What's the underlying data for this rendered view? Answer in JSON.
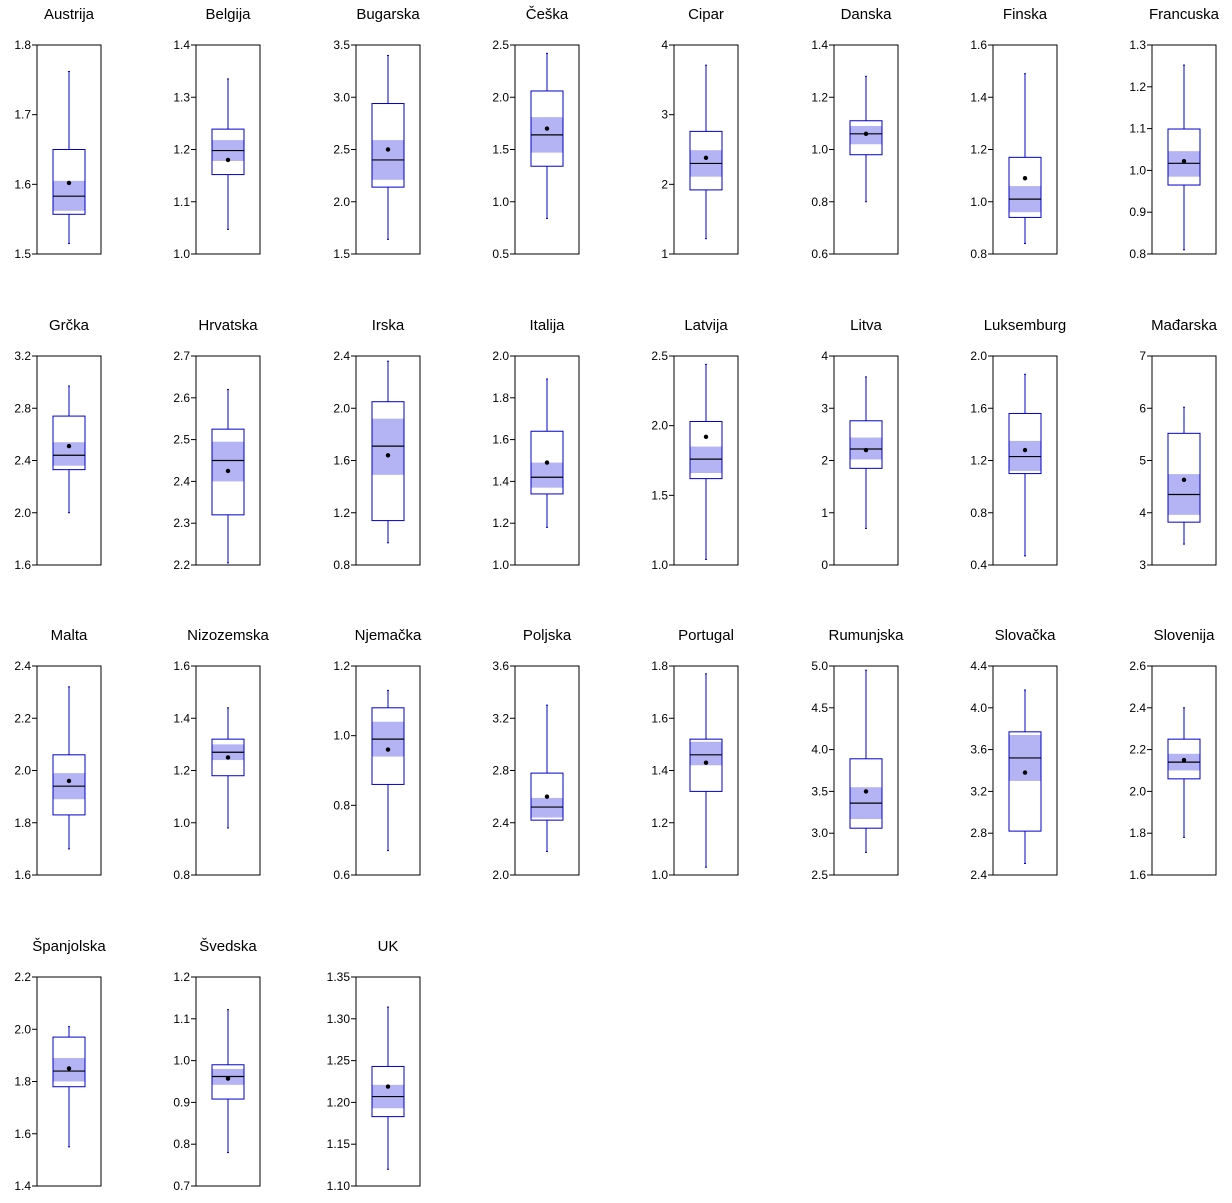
{
  "colors": {
    "box": "#0000cc",
    "notch": "#b4b4f4",
    "median": "#000000",
    "mean": "#000000",
    "frame": "#000000",
    "background": "#ffffff"
  },
  "chart_data": [
    {
      "type": "box",
      "title": "Austrija",
      "ylim": [
        1.5,
        1.8
      ],
      "ticks": [
        "1.5",
        "1.6",
        "1.7",
        "1.8"
      ],
      "box": {
        "whisker_low": 1.515,
        "q1": 1.557,
        "median": 1.583,
        "q3": 1.65,
        "whisker_high": 1.762,
        "mean": 1.602,
        "notch_low": 1.562,
        "notch_high": 1.605
      }
    },
    {
      "type": "box",
      "title": "Belgija",
      "ylim": [
        1.0,
        1.4
      ],
      "ticks": [
        "1.0",
        "1.1",
        "1.2",
        "1.3",
        "1.4"
      ],
      "box": {
        "whisker_low": 1.047,
        "q1": 1.152,
        "median": 1.198,
        "q3": 1.239,
        "whisker_high": 1.335,
        "mean": 1.18,
        "notch_low": 1.178,
        "notch_high": 1.218
      }
    },
    {
      "type": "box",
      "title": "Bugarska",
      "ylim": [
        1.5,
        3.5
      ],
      "ticks": [
        "1.5",
        "2.0",
        "2.5",
        "3.0",
        "3.5"
      ],
      "box": {
        "whisker_low": 1.64,
        "q1": 2.14,
        "median": 2.4,
        "q3": 2.94,
        "whisker_high": 3.4,
        "mean": 2.5,
        "notch_low": 2.21,
        "notch_high": 2.59
      }
    },
    {
      "type": "box",
      "title": "Češka",
      "ylim": [
        0.5,
        2.5
      ],
      "ticks": [
        "0.5",
        "1.0",
        "1.5",
        "2.0",
        "2.5"
      ],
      "box": {
        "whisker_low": 0.84,
        "q1": 1.34,
        "median": 1.64,
        "q3": 2.06,
        "whisker_high": 2.42,
        "mean": 1.7,
        "notch_low": 1.47,
        "notch_high": 1.81
      }
    },
    {
      "type": "box",
      "title": "Cipar",
      "ylim": [
        1,
        4
      ],
      "ticks": [
        "1",
        "2",
        "3",
        "4"
      ],
      "box": {
        "whisker_low": 1.22,
        "q1": 1.92,
        "median": 2.3,
        "q3": 2.76,
        "whisker_high": 3.71,
        "mean": 2.38,
        "notch_low": 2.11,
        "notch_high": 2.49
      }
    },
    {
      "type": "box",
      "title": "Danska",
      "ylim": [
        0.6,
        1.4
      ],
      "ticks": [
        "0.6",
        "0.8",
        "1.0",
        "1.2",
        "1.4"
      ],
      "box": {
        "whisker_low": 0.8,
        "q1": 0.98,
        "median": 1.06,
        "q3": 1.11,
        "whisker_high": 1.28,
        "mean": 1.06,
        "notch_low": 1.02,
        "notch_high": 1.09
      }
    },
    {
      "type": "box",
      "title": "Finska",
      "ylim": [
        0.8,
        1.6
      ],
      "ticks": [
        "0.8",
        "1.0",
        "1.2",
        "1.4",
        "1.6"
      ],
      "box": {
        "whisker_low": 0.84,
        "q1": 0.94,
        "median": 1.01,
        "q3": 1.17,
        "whisker_high": 1.49,
        "mean": 1.09,
        "notch_low": 0.96,
        "notch_high": 1.06
      }
    },
    {
      "type": "box",
      "title": "Francuska",
      "ylim": [
        0.8,
        1.3
      ],
      "ticks": [
        "0.8",
        "0.9",
        "1.0",
        "1.1",
        "1.2",
        "1.3"
      ],
      "box": {
        "whisker_low": 0.81,
        "q1": 0.965,
        "median": 1.017,
        "q3": 1.099,
        "whisker_high": 1.252,
        "mean": 1.022,
        "notch_low": 0.985,
        "notch_high": 1.046
      }
    },
    {
      "type": "box",
      "title": "Grčka",
      "ylim": [
        1.6,
        3.2
      ],
      "ticks": [
        "1.6",
        "2.0",
        "2.4",
        "2.8",
        "3.2"
      ],
      "box": {
        "whisker_low": 2.0,
        "q1": 2.33,
        "median": 2.44,
        "q3": 2.74,
        "whisker_high": 2.97,
        "mean": 2.51,
        "notch_low": 2.36,
        "notch_high": 2.54
      }
    },
    {
      "type": "box",
      "title": "Hrvatska",
      "ylim": [
        2.2,
        2.7
      ],
      "ticks": [
        "2.2",
        "2.3",
        "2.4",
        "2.5",
        "2.6",
        "2.7"
      ],
      "box": {
        "whisker_low": 2.205,
        "q1": 2.32,
        "median": 2.45,
        "q3": 2.525,
        "whisker_high": 2.62,
        "mean": 2.425,
        "notch_low": 2.4,
        "notch_high": 2.495
      }
    },
    {
      "type": "box",
      "title": "Irska",
      "ylim": [
        0.8,
        2.4
      ],
      "ticks": [
        "0.8",
        "1.2",
        "1.6",
        "2.0",
        "2.4"
      ],
      "box": {
        "whisker_low": 0.97,
        "q1": 1.14,
        "median": 1.71,
        "q3": 2.05,
        "whisker_high": 2.36,
        "mean": 1.64,
        "notch_low": 1.49,
        "notch_high": 1.92
      }
    },
    {
      "type": "box",
      "title": "Italija",
      "ylim": [
        1.0,
        2.0
      ],
      "ticks": [
        "1.0",
        "1.2",
        "1.4",
        "1.6",
        "1.8",
        "2.0"
      ],
      "box": {
        "whisker_low": 1.18,
        "q1": 1.34,
        "median": 1.42,
        "q3": 1.64,
        "whisker_high": 1.89,
        "mean": 1.49,
        "notch_low": 1.37,
        "notch_high": 1.49
      }
    },
    {
      "type": "box",
      "title": "Latvija",
      "ylim": [
        1.0,
        2.5
      ],
      "ticks": [
        "1.0",
        "1.5",
        "2.0",
        "2.5"
      ],
      "box": {
        "whisker_low": 1.04,
        "q1": 1.62,
        "median": 1.76,
        "q3": 2.03,
        "whisker_high": 2.44,
        "mean": 1.92,
        "notch_low": 1.66,
        "notch_high": 1.85
      }
    },
    {
      "type": "box",
      "title": "Litva",
      "ylim": [
        0,
        4
      ],
      "ticks": [
        "0",
        "1",
        "2",
        "3",
        "4"
      ],
      "box": {
        "whisker_low": 0.7,
        "q1": 1.85,
        "median": 2.22,
        "q3": 2.76,
        "whisker_high": 3.6,
        "mean": 2.2,
        "notch_low": 2.02,
        "notch_high": 2.44
      }
    },
    {
      "type": "box",
      "title": "Luksemburg",
      "ylim": [
        0.4,
        2.0
      ],
      "ticks": [
        "0.4",
        "0.8",
        "1.2",
        "1.6",
        "2.0"
      ],
      "box": {
        "whisker_low": 0.47,
        "q1": 1.1,
        "median": 1.23,
        "q3": 1.56,
        "whisker_high": 1.86,
        "mean": 1.28,
        "notch_low": 1.12,
        "notch_high": 1.35
      }
    },
    {
      "type": "box",
      "title": "Mađarska",
      "ylim": [
        3,
        7
      ],
      "ticks": [
        "3",
        "4",
        "5",
        "6",
        "7"
      ],
      "box": {
        "whisker_low": 3.4,
        "q1": 3.82,
        "median": 4.35,
        "q3": 5.52,
        "whisker_high": 6.02,
        "mean": 4.63,
        "notch_low": 3.96,
        "notch_high": 4.74
      }
    },
    {
      "type": "box",
      "title": "Malta",
      "ylim": [
        1.6,
        2.4
      ],
      "ticks": [
        "1.6",
        "1.8",
        "2.0",
        "2.2",
        "2.4"
      ],
      "box": {
        "whisker_low": 1.7,
        "q1": 1.83,
        "median": 1.94,
        "q3": 2.06,
        "whisker_high": 2.32,
        "mean": 1.96,
        "notch_low": 1.89,
        "notch_high": 1.99
      }
    },
    {
      "type": "box",
      "title": "Nizozemska",
      "ylim": [
        0.8,
        1.6
      ],
      "ticks": [
        "0.8",
        "1.0",
        "1.2",
        "1.4",
        "1.6"
      ],
      "box": {
        "whisker_low": 0.98,
        "q1": 1.18,
        "median": 1.27,
        "q3": 1.32,
        "whisker_high": 1.44,
        "mean": 1.25,
        "notch_low": 1.24,
        "notch_high": 1.3
      }
    },
    {
      "type": "box",
      "title": "Njemačka",
      "ylim": [
        0.6,
        1.2
      ],
      "ticks": [
        "0.6",
        "0.8",
        "1.0",
        "1.2"
      ],
      "box": {
        "whisker_low": 0.67,
        "q1": 0.86,
        "median": 0.99,
        "q3": 1.08,
        "whisker_high": 1.13,
        "mean": 0.96,
        "notch_low": 0.94,
        "notch_high": 1.04
      }
    },
    {
      "type": "box",
      "title": "Poljska",
      "ylim": [
        2.0,
        3.6
      ],
      "ticks": [
        "2.0",
        "2.4",
        "2.8",
        "3.2",
        "3.6"
      ],
      "box": {
        "whisker_low": 2.18,
        "q1": 2.42,
        "median": 2.52,
        "q3": 2.78,
        "whisker_high": 3.3,
        "mean": 2.6,
        "notch_low": 2.44,
        "notch_high": 2.59
      }
    },
    {
      "type": "box",
      "title": "Portugal",
      "ylim": [
        1.0,
        1.8
      ],
      "ticks": [
        "1.0",
        "1.2",
        "1.4",
        "1.6",
        "1.8"
      ],
      "box": {
        "whisker_low": 1.03,
        "q1": 1.32,
        "median": 1.46,
        "q3": 1.52,
        "whisker_high": 1.77,
        "mean": 1.43,
        "notch_low": 1.42,
        "notch_high": 1.51
      }
    },
    {
      "type": "box",
      "title": "Rumunjska",
      "ylim": [
        2.5,
        5.0
      ],
      "ticks": [
        "2.5",
        "3.0",
        "3.5",
        "4.0",
        "4.5",
        "5.0"
      ],
      "box": {
        "whisker_low": 2.77,
        "q1": 3.06,
        "median": 3.36,
        "q3": 3.89,
        "whisker_high": 4.95,
        "mean": 3.5,
        "notch_low": 3.17,
        "notch_high": 3.55
      }
    },
    {
      "type": "box",
      "title": "Slovačka",
      "ylim": [
        2.4,
        4.4
      ],
      "ticks": [
        "2.4",
        "2.8",
        "3.2",
        "3.6",
        "4.0",
        "4.4"
      ],
      "box": {
        "whisker_low": 2.51,
        "q1": 2.82,
        "median": 3.52,
        "q3": 3.77,
        "whisker_high": 4.17,
        "mean": 3.38,
        "notch_low": 3.3,
        "notch_high": 3.74
      }
    },
    {
      "type": "box",
      "title": "Slovenija",
      "ylim": [
        1.6,
        2.6
      ],
      "ticks": [
        "1.6",
        "1.8",
        "2.0",
        "2.2",
        "2.4",
        "2.6"
      ],
      "box": {
        "whisker_low": 1.78,
        "q1": 2.06,
        "median": 2.14,
        "q3": 2.25,
        "whisker_high": 2.4,
        "mean": 2.15,
        "notch_low": 2.1,
        "notch_high": 2.18
      }
    },
    {
      "type": "box",
      "title": "Španjolska",
      "ylim": [
        1.4,
        2.2
      ],
      "ticks": [
        "1.4",
        "1.6",
        "1.8",
        "2.0",
        "2.2"
      ],
      "box": {
        "whisker_low": 1.55,
        "q1": 1.78,
        "median": 1.84,
        "q3": 1.97,
        "whisker_high": 2.01,
        "mean": 1.85,
        "notch_low": 1.8,
        "notch_high": 1.89
      }
    },
    {
      "type": "box",
      "title": "Švedska",
      "ylim": [
        0.7,
        1.2
      ],
      "ticks": [
        "0.7",
        "0.8",
        "0.9",
        "1.0",
        "1.1",
        "1.2"
      ],
      "box": {
        "whisker_low": 0.78,
        "q1": 0.908,
        "median": 0.962,
        "q3": 0.99,
        "whisker_high": 1.122,
        "mean": 0.957,
        "notch_low": 0.942,
        "notch_high": 0.98
      }
    },
    {
      "type": "box",
      "title": "UK",
      "ylim": [
        1.1,
        1.35
      ],
      "ticks": [
        "1.10",
        "1.15",
        "1.20",
        "1.25",
        "1.30",
        "1.35"
      ],
      "box": {
        "whisker_low": 1.12,
        "q1": 1.183,
        "median": 1.207,
        "q3": 1.243,
        "whisker_high": 1.314,
        "mean": 1.219,
        "notch_low": 1.193,
        "notch_high": 1.221
      }
    }
  ]
}
